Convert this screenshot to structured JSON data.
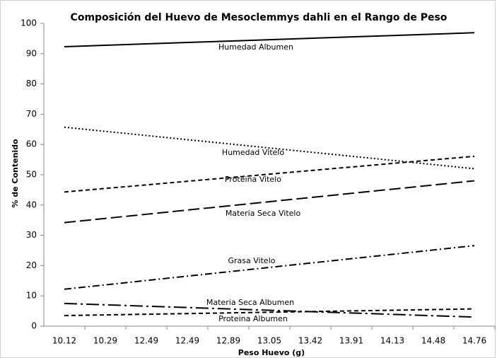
{
  "chart_data": {
    "type": "line",
    "title": "Composición del Huevo de Mesoclemmys dahli en el Rango de Peso",
    "x_label": "Peso Huevo (g)",
    "y_label": "% de Contenido",
    "categories": [
      "10.12",
      "10.29",
      "12.49",
      "12.49",
      "12.89",
      "13.05",
      "13.42",
      "13.91",
      "14.13",
      "14.48",
      "14.76"
    ],
    "ylim": [
      0,
      100
    ],
    "yticks": [
      0,
      10,
      20,
      30,
      40,
      50,
      60,
      70,
      80,
      90,
      100
    ],
    "series": [
      {
        "name": "Humedad Albumen",
        "color": "#000000",
        "style": "solid",
        "values": [
          92.3,
          92.76,
          93.22,
          93.68,
          94.14,
          94.6,
          95.06,
          95.52,
          95.98,
          96.44,
          96.9
        ]
      },
      {
        "name": "Humedad Vitelo",
        "color": "#000000",
        "style": "dotted",
        "values": [
          65.7,
          64.33,
          62.96,
          61.59,
          60.22,
          58.85,
          57.48,
          56.11,
          54.74,
          53.37,
          52.0
        ]
      },
      {
        "name": "Proteina Vitelo",
        "color": "#000000",
        "style": "dashed",
        "values": [
          44.3,
          45.48,
          46.66,
          47.84,
          49.02,
          50.2,
          51.38,
          52.56,
          53.74,
          54.92,
          56.1
        ]
      },
      {
        "name": "Materia Seca Vitelo",
        "color": "#000000",
        "style": "long-dash",
        "values": [
          34.2,
          35.58,
          36.96,
          38.34,
          39.72,
          41.1,
          42.48,
          43.86,
          45.24,
          46.62,
          48.0
        ]
      },
      {
        "name": "Grasa Vitelo",
        "color": "#000000",
        "style": "dash-dot",
        "values": [
          12.2,
          13.64,
          15.08,
          16.52,
          17.96,
          19.4,
          20.84,
          22.28,
          23.72,
          25.16,
          26.6
        ]
      },
      {
        "name": "Materia Seca Albumen",
        "color": "#000000",
        "style": "long-dash-dot",
        "values": [
          7.5,
          7.05,
          6.6,
          6.15,
          5.7,
          5.25,
          4.8,
          4.35,
          3.9,
          3.45,
          3.0
        ]
      },
      {
        "name": "Proteina Albumen",
        "color": "#000000",
        "style": "dashed",
        "values": [
          3.5,
          3.72,
          3.94,
          4.16,
          4.38,
          4.6,
          4.82,
          5.04,
          5.26,
          5.48,
          5.7
        ]
      }
    ]
  }
}
